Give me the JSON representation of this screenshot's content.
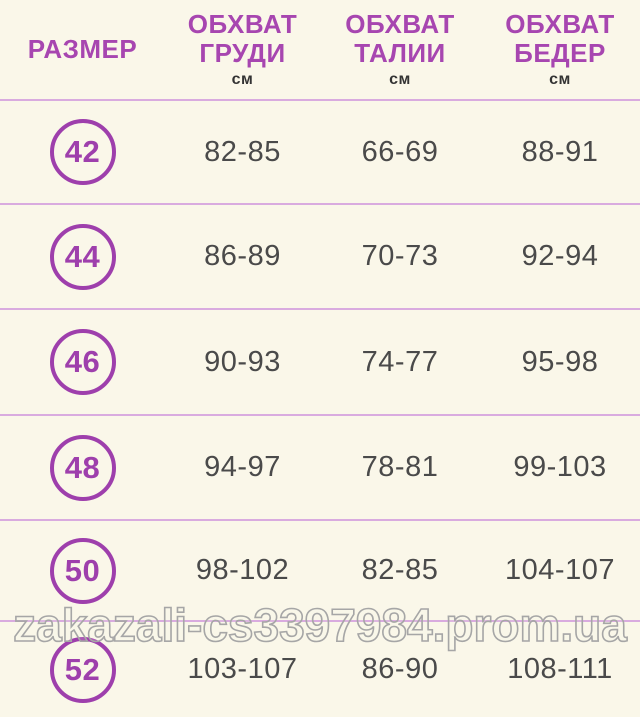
{
  "accent_color": "#a746b0",
  "background_color": "#faf7e9",
  "separator_color": "#d9abdf",
  "watermark": "zakazali-cs3397984.prom.ua",
  "table": {
    "columns": [
      {
        "line1": "РАЗМЕР",
        "line2": "",
        "unit": ""
      },
      {
        "line1": "ОБХВАТ",
        "line2": "ГРУДИ",
        "unit": "см"
      },
      {
        "line1": "ОБХВАТ",
        "line2": "ТАЛИИ",
        "unit": "см"
      },
      {
        "line1": "ОБХВАТ",
        "line2": "БЕДЕР",
        "unit": "см"
      }
    ],
    "rows": [
      {
        "size": "42",
        "chest": "82-85",
        "waist": "66-69",
        "hips": "88-91"
      },
      {
        "size": "44",
        "chest": "86-89",
        "waist": "70-73",
        "hips": "92-94"
      },
      {
        "size": "46",
        "chest": "90-93",
        "waist": "74-77",
        "hips": "95-98"
      },
      {
        "size": "48",
        "chest": "94-97",
        "waist": "78-81",
        "hips": "99-103"
      },
      {
        "size": "50",
        "chest": "98-102",
        "waist": "82-85",
        "hips": "104-107"
      },
      {
        "size": "52",
        "chest": "103-107",
        "waist": "86-90",
        "hips": "108-111"
      }
    ]
  },
  "chart_data": {
    "type": "table",
    "title": "",
    "columns": [
      "РАЗМЕР",
      "ОБХВАТ ГРУДИ см",
      "ОБХВАТ ТАЛИИ см",
      "ОБХВАТ БЕДЕР см"
    ],
    "rows": [
      [
        "42",
        "82-85",
        "66-69",
        "88-91"
      ],
      [
        "44",
        "86-89",
        "70-73",
        "92-94"
      ],
      [
        "46",
        "90-93",
        "74-77",
        "95-98"
      ],
      [
        "48",
        "94-97",
        "78-81",
        "99-103"
      ],
      [
        "50",
        "98-102",
        "82-85",
        "104-107"
      ],
      [
        "52",
        "103-107",
        "86-90",
        "108-111"
      ]
    ]
  }
}
